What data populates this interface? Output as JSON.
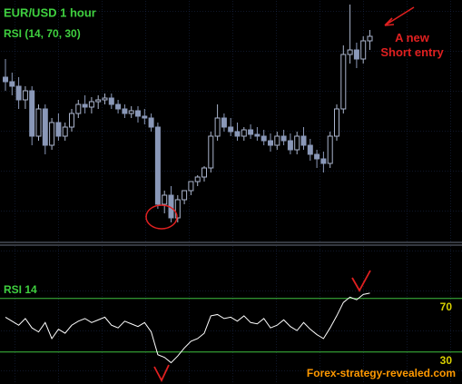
{
  "chart_data": [
    {
      "type": "candlestick",
      "title": "EUR/USD 1 hour",
      "subtitle": "RSI (14, 70, 30)",
      "annotation": "A new Short entry",
      "open": [
        180,
        175,
        170,
        155,
        165,
        115,
        145,
        105,
        130,
        115,
        125,
        140,
        150,
        147,
        153,
        155,
        157,
        150,
        145,
        140,
        143,
        137,
        135,
        125,
        40,
        50,
        25,
        45,
        55,
        65,
        70,
        80,
        115,
        135,
        125,
        120,
        115,
        122,
        117,
        115,
        110,
        105,
        115,
        110,
        100,
        115,
        105,
        95,
        90,
        85,
        115,
        145,
        205,
        210,
        200,
        220
      ],
      "high": [
        200,
        185,
        180,
        170,
        170,
        150,
        150,
        135,
        140,
        130,
        145,
        155,
        160,
        158,
        160,
        162,
        162,
        155,
        150,
        148,
        148,
        145,
        140,
        130,
        55,
        60,
        50,
        55,
        65,
        72,
        82,
        120,
        150,
        140,
        135,
        130,
        125,
        128,
        125,
        122,
        118,
        120,
        122,
        118,
        120,
        125,
        112,
        100,
        98,
        120,
        150,
        215,
        260,
        218,
        225,
        232
      ],
      "low": [
        165,
        160,
        145,
        145,
        105,
        110,
        95,
        100,
        110,
        110,
        120,
        135,
        140,
        140,
        145,
        150,
        145,
        140,
        135,
        135,
        130,
        128,
        120,
        35,
        30,
        20,
        20,
        40,
        50,
        60,
        65,
        75,
        110,
        120,
        115,
        110,
        110,
        112,
        110,
        105,
        98,
        100,
        105,
        95,
        95,
        100,
        88,
        80,
        75,
        80,
        110,
        140,
        195,
        190,
        195,
        210
      ],
      "close": [
        175,
        170,
        155,
        165,
        115,
        145,
        105,
        130,
        115,
        125,
        140,
        150,
        147,
        153,
        155,
        157,
        150,
        145,
        140,
        143,
        137,
        135,
        125,
        40,
        50,
        25,
        45,
        55,
        65,
        70,
        80,
        115,
        135,
        125,
        120,
        115,
        122,
        117,
        115,
        110,
        105,
        115,
        110,
        100,
        115,
        105,
        95,
        90,
        85,
        115,
        145,
        205,
        210,
        200,
        220,
        225
      ],
      "ylim": [
        0,
        260
      ],
      "up_color": "#aab4cc",
      "down_color": "#8a98b8"
    },
    {
      "type": "line",
      "title": "RSI 14",
      "watermark": "Forex-strategy-revealed.com",
      "values": [
        56,
        53,
        50,
        55,
        48,
        45,
        52,
        40,
        47,
        44,
        50,
        53,
        55,
        52,
        54,
        56,
        50,
        48,
        53,
        51,
        49,
        52,
        45,
        28,
        26,
        22,
        27,
        33,
        38,
        40,
        44,
        57,
        58,
        55,
        56,
        53,
        57,
        52,
        51,
        55,
        48,
        50,
        54,
        49,
        46,
        52,
        47,
        43,
        40,
        48,
        57,
        67,
        71,
        69,
        73,
        74
      ],
      "color": "#ffffff",
      "level_color": "#3fbf3f",
      "ylim": [
        0,
        100
      ],
      "yticks": [
        30,
        70
      ]
    }
  ]
}
